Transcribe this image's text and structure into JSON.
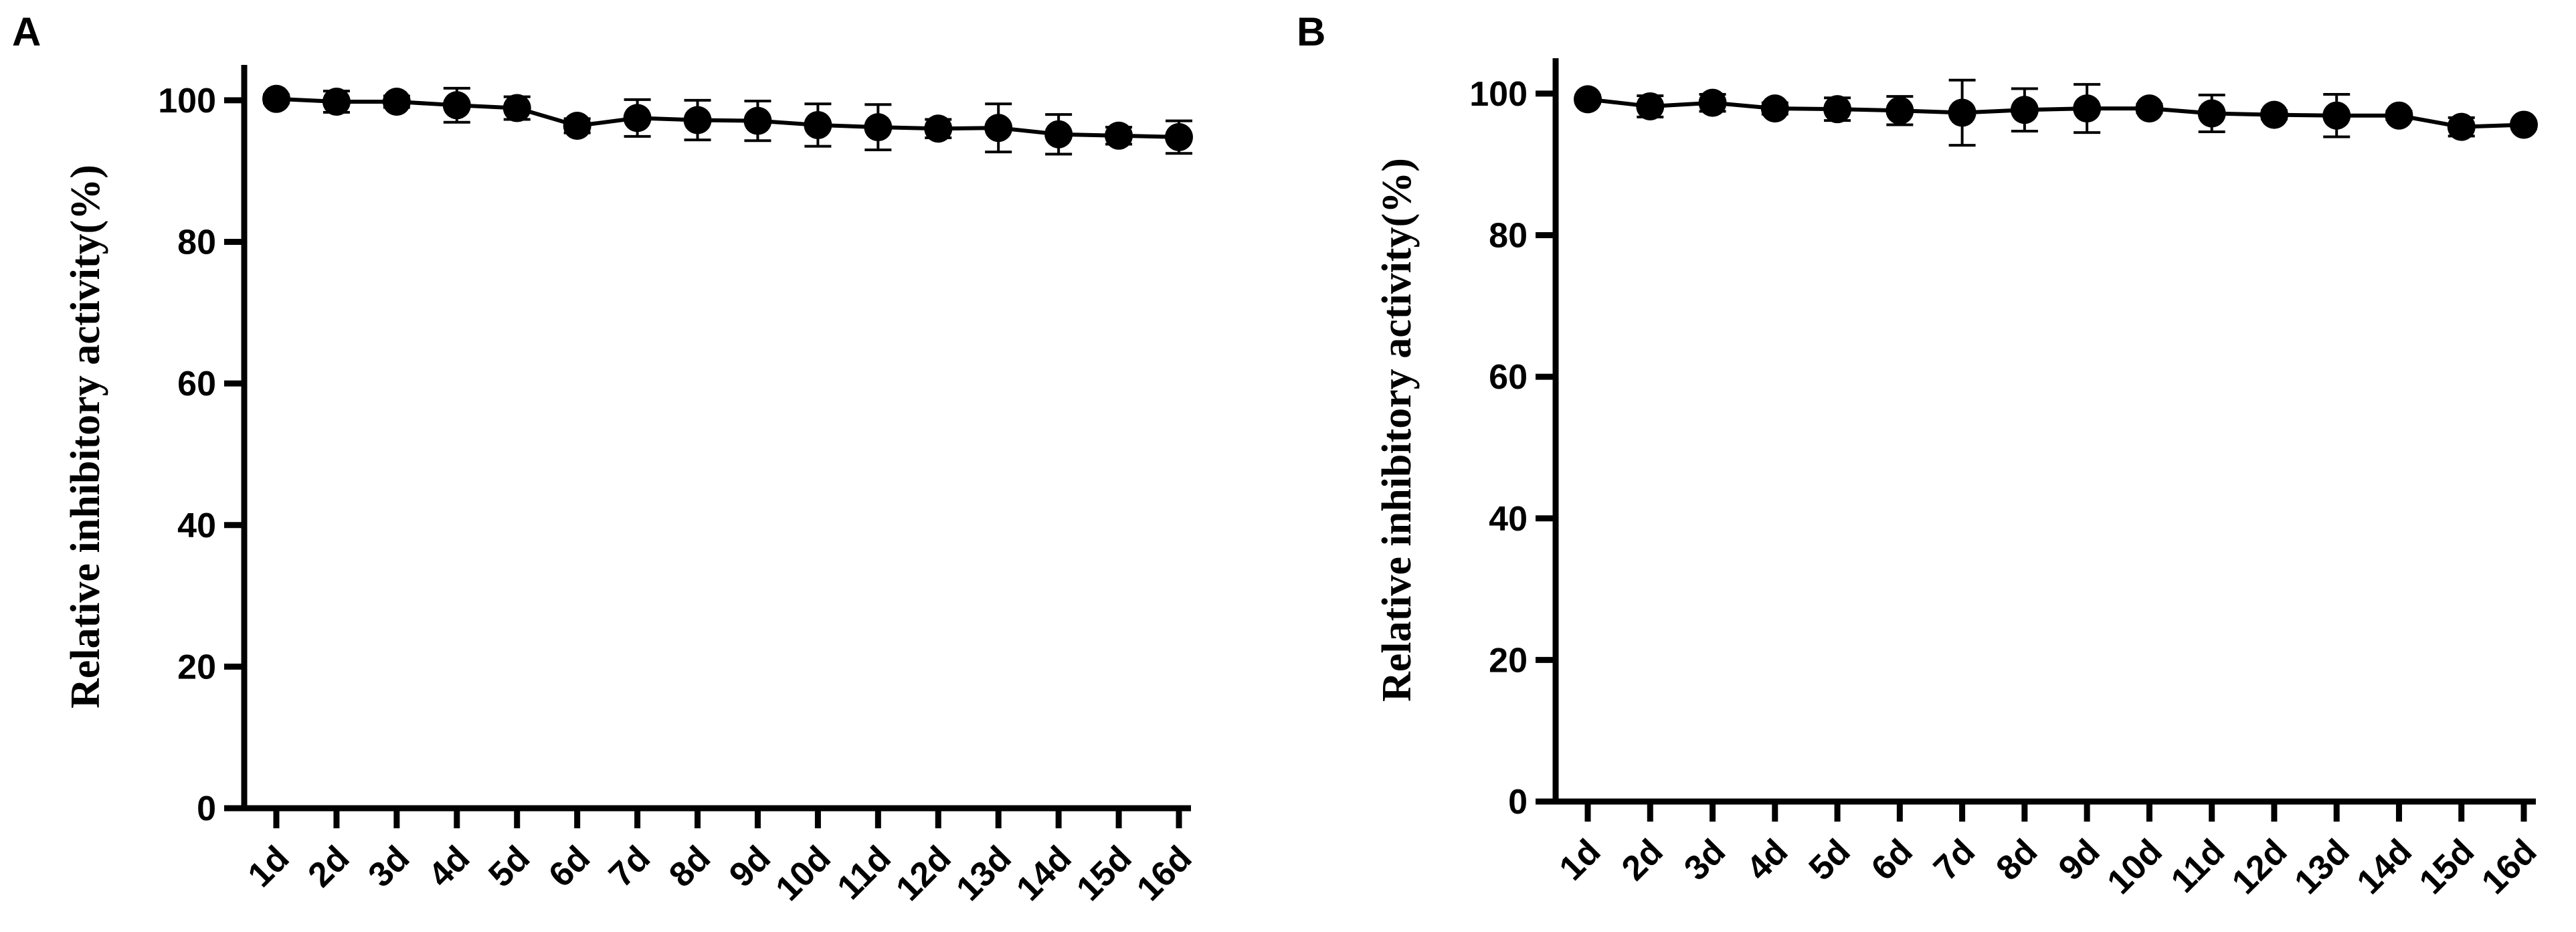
{
  "chart_data": [
    {
      "panel_label": "A",
      "type": "line",
      "ylabel": "Relative inhibitory activity(%)",
      "xlabel": "",
      "categories": [
        "1d",
        "2d",
        "3d",
        "4d",
        "5d",
        "6d",
        "7d",
        "8d",
        "9d",
        "10d",
        "11d",
        "12d",
        "13d",
        "14d",
        "15d",
        "16d"
      ],
      "values": [
        100.2,
        99.8,
        99.8,
        99.3,
        98.9,
        96.4,
        97.5,
        97.2,
        97.1,
        96.5,
        96.2,
        96.0,
        96.1,
        95.2,
        95.0,
        94.8
      ],
      "errors": [
        0.6,
        1.5,
        0.8,
        2.4,
        1.6,
        1.0,
        2.6,
        2.8,
        2.8,
        3.0,
        3.2,
        1.3,
        3.4,
        2.8,
        1.2,
        2.3
      ],
      "ylim": [
        0,
        105
      ],
      "yticks": [
        "0",
        "20",
        "40",
        "60",
        "80",
        "100"
      ],
      "grid": false,
      "marker": "filled-circle",
      "color": "#000000"
    },
    {
      "panel_label": "B",
      "type": "line",
      "ylabel": "Relative inhibitory activity(%)",
      "xlabel": "",
      "categories": [
        "1d",
        "2d",
        "3d",
        "4d",
        "5d",
        "6d",
        "7d",
        "8d",
        "9d",
        "10d",
        "11d",
        "12d",
        "13d",
        "14d",
        "15d",
        "16d"
      ],
      "values": [
        99.2,
        98.2,
        98.7,
        97.9,
        97.8,
        97.6,
        97.3,
        97.7,
        97.9,
        97.9,
        97.2,
        97.0,
        96.9,
        96.9,
        95.3,
        95.6
      ],
      "errors": [
        0.5,
        1.5,
        1.2,
        0.8,
        1.6,
        2.0,
        4.6,
        3.0,
        3.4,
        0.6,
        2.6,
        0.6,
        3.0,
        0.6,
        1.3,
        0.5
      ],
      "ylim": [
        0,
        105
      ],
      "yticks": [
        "0",
        "20",
        "40",
        "60",
        "80",
        "100"
      ],
      "grid": false,
      "marker": "filled-circle",
      "color": "#000000"
    }
  ]
}
